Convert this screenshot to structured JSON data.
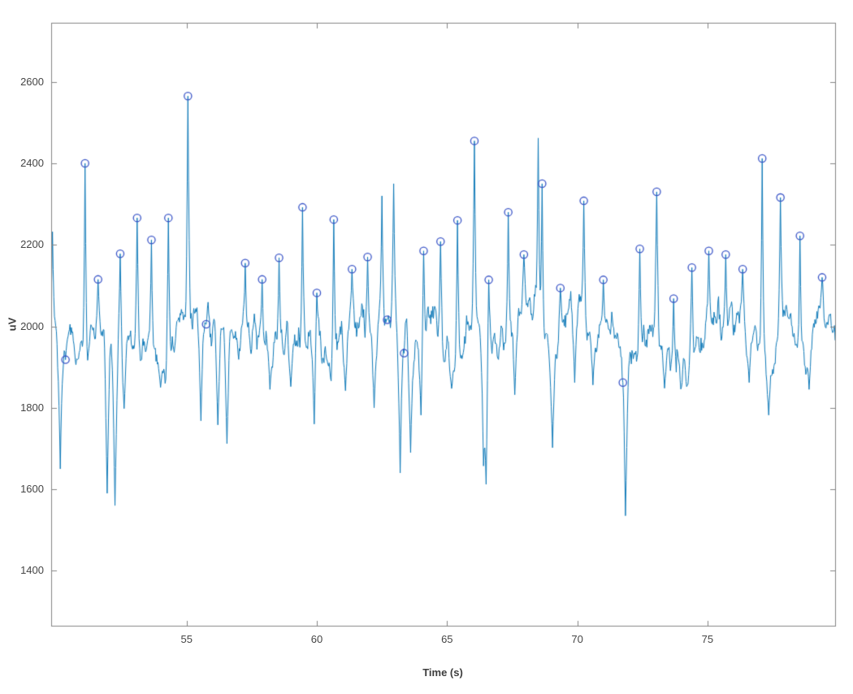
{
  "figure": {
    "background": "#ffffff"
  },
  "chart_data": {
    "type": "line",
    "title": "",
    "xlabel": "Time (s)",
    "ylabel": "uV",
    "xlim": [
      49.8,
      79.9
    ],
    "ylim": [
      1265,
      2745
    ],
    "xticks": [
      55,
      60,
      65,
      70,
      75
    ],
    "yticks": [
      1400,
      1600,
      1800,
      2000,
      2200,
      2400,
      2600
    ],
    "grid": false,
    "legend": null,
    "line_color": "#0f7ab9",
    "marker_color": "#3a55c8",
    "axis_color": "#858585",
    "tick_label_color": "#454545",
    "baseline_uV": 1985,
    "sample_interval_s": 0.025,
    "seed": 1337,
    "marker_style": "circle",
    "peaks_marked": [
      [
        50.35,
        1918
      ],
      [
        51.1,
        2400
      ],
      [
        51.6,
        2115
      ],
      [
        52.45,
        2178
      ],
      [
        53.1,
        2266
      ],
      [
        53.65,
        2212
      ],
      [
        54.3,
        2266
      ],
      [
        55.05,
        2565
      ],
      [
        55.75,
        2005
      ],
      [
        57.25,
        2155
      ],
      [
        57.9,
        2115
      ],
      [
        58.55,
        2168
      ],
      [
        59.45,
        2292
      ],
      [
        60.0,
        2082
      ],
      [
        60.65,
        2262
      ],
      [
        61.35,
        2140
      ],
      [
        61.95,
        2170
      ],
      [
        62.7,
        2016
      ],
      [
        63.35,
        1934
      ],
      [
        64.1,
        2185
      ],
      [
        64.75,
        2208
      ],
      [
        65.4,
        2260
      ],
      [
        66.05,
        2455
      ],
      [
        66.6,
        2114
      ],
      [
        67.35,
        2280
      ],
      [
        67.95,
        2176
      ],
      [
        68.65,
        2350
      ],
      [
        69.35,
        2094
      ],
      [
        70.25,
        2308
      ],
      [
        71.0,
        2114
      ],
      [
        71.75,
        1862
      ],
      [
        72.4,
        2190
      ],
      [
        73.05,
        2330
      ],
      [
        73.7,
        2068
      ],
      [
        74.4,
        2144
      ],
      [
        75.05,
        2185
      ],
      [
        75.7,
        2176
      ],
      [
        76.35,
        2140
      ],
      [
        77.1,
        2412
      ],
      [
        77.8,
        2316
      ],
      [
        78.55,
        2222
      ],
      [
        79.4,
        2120
      ]
    ],
    "peaks_unmarked": [
      [
        49.85,
        2232
      ],
      [
        56.35,
        1992
      ],
      [
        56.75,
        1985
      ],
      [
        62.5,
        2320
      ],
      [
        62.95,
        2350
      ],
      [
        68.5,
        2462
      ]
    ],
    "troughs": [
      [
        50.15,
        1650
      ],
      [
        51.95,
        1590
      ],
      [
        52.25,
        1560
      ],
      [
        52.6,
        1798
      ],
      [
        54.0,
        1850
      ],
      [
        55.55,
        1768
      ],
      [
        56.2,
        1758
      ],
      [
        56.55,
        1712
      ],
      [
        58.2,
        1845
      ],
      [
        59.0,
        1852
      ],
      [
        59.9,
        1760
      ],
      [
        61.1,
        1842
      ],
      [
        62.2,
        1800
      ],
      [
        63.2,
        1640
      ],
      [
        63.6,
        1690
      ],
      [
        64.0,
        1782
      ],
      [
        66.4,
        1668
      ],
      [
        66.5,
        1612
      ],
      [
        67.6,
        1832
      ],
      [
        69.05,
        1702
      ],
      [
        69.9,
        1862
      ],
      [
        70.6,
        1856
      ],
      [
        71.85,
        1535
      ],
      [
        73.35,
        1848
      ],
      [
        74.2,
        1852
      ],
      [
        76.6,
        1862
      ],
      [
        77.35,
        1782
      ],
      [
        78.9,
        1845
      ]
    ]
  }
}
